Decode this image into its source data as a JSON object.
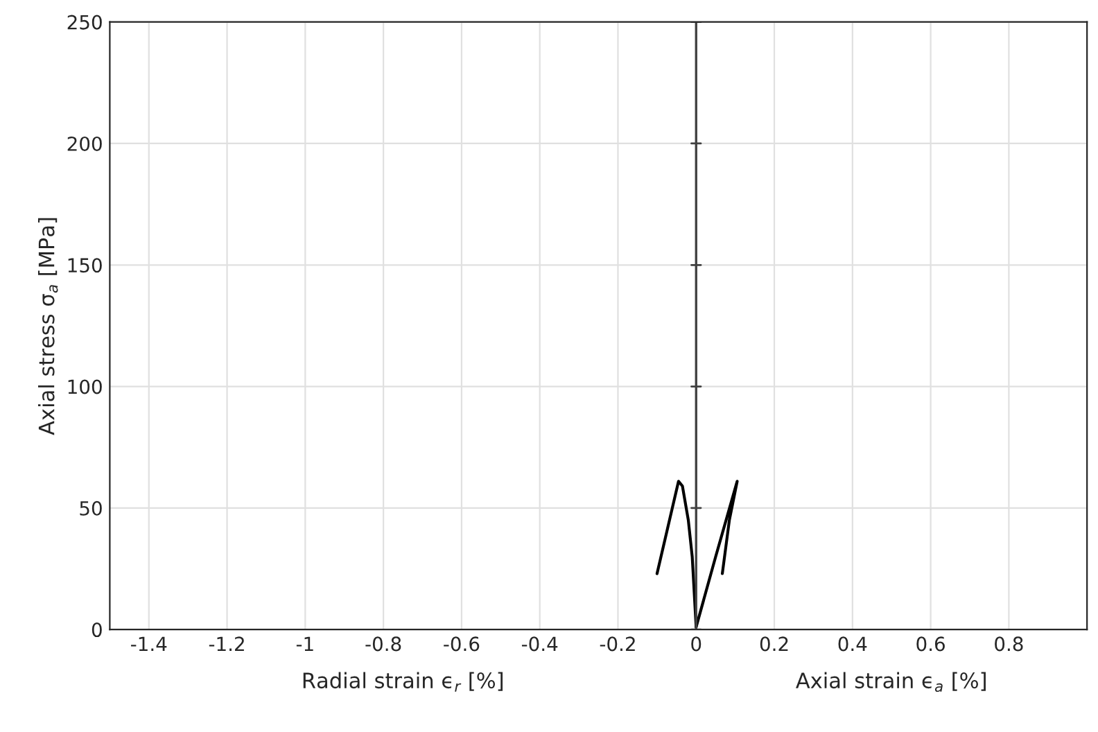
{
  "chart_data": {
    "type": "line",
    "xlabel": "Radial strain ϵ$_{r}$ [%]",
    "ylabel": "Axial stress σ$_{a}$ [MPa]",
    "annotations": [
      "Axial strain ϵ$_{a}$ [%]"
    ],
    "series": [
      {
        "color": "#000000",
        "x": [
          -0.1,
          -0.045,
          -0.035,
          -0.02,
          -0.01,
          0.0
        ],
        "values": [
          23,
          61,
          59,
          45,
          30,
          1
        ]
      },
      {
        "color": "#000000",
        "x": [
          0.0,
          0.05,
          0.105,
          0.085,
          0.067
        ],
        "values": [
          1,
          30,
          61,
          45,
          23
        ]
      }
    ],
    "xlim": [
      -1.5,
      1
    ],
    "ylim": [
      0,
      250
    ],
    "xticks": [
      -1.4,
      -1.2,
      -1,
      -0.8,
      -0.6,
      -0.4,
      -0.2,
      0,
      0.2,
      0.4,
      0.6,
      0.8
    ],
    "yticks": [
      0,
      50,
      100,
      150,
      200,
      250
    ],
    "ref_lines": [
      {
        "axis": "x",
        "value": 0,
        "color": "#404040"
      }
    ],
    "grid": true,
    "marker": "none",
    "line_style": "solid"
  }
}
